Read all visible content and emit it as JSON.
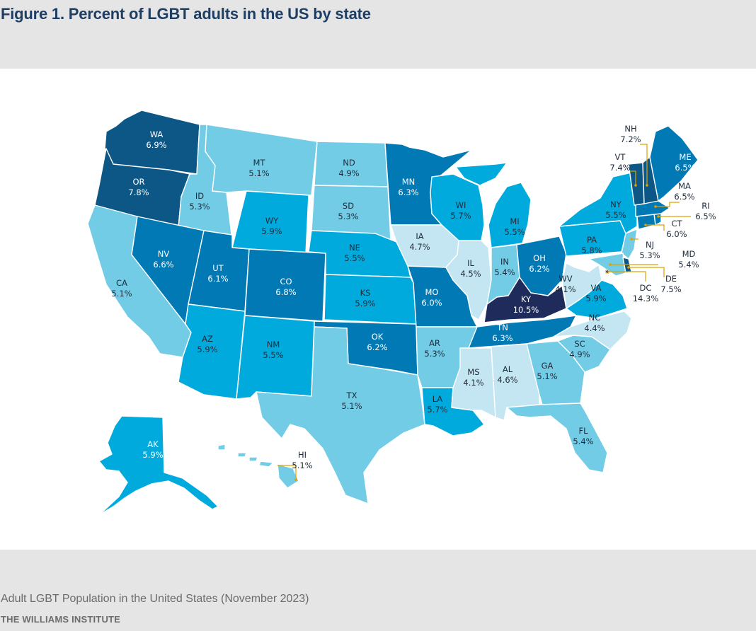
{
  "title": "Figure 1. Percent of LGBT adults in the US by state",
  "source": "Adult LGBT Population in the United States (November 2023)",
  "organization": "THE WILLIAMS INSTITUTE",
  "colors": {
    "shade_1": "#c4e5f2",
    "shade_2": "#73cce6",
    "shade_3": "#00aadd",
    "shade_4": "#0079b5",
    "shade_5": "#0d5787",
    "shade_6": "#1f2b5a",
    "leader": "#e0a100",
    "title": "#1f3e63"
  },
  "states": {
    "WA": {
      "abbr": "WA",
      "value": "6.9%"
    },
    "OR": {
      "abbr": "OR",
      "value": "7.8%"
    },
    "CA": {
      "abbr": "CA",
      "value": "5.1%"
    },
    "ID": {
      "abbr": "ID",
      "value": "5.3%"
    },
    "NV": {
      "abbr": "NV",
      "value": "6.6%"
    },
    "MT": {
      "abbr": "MT",
      "value": "5.1%"
    },
    "WY": {
      "abbr": "WY",
      "value": "5.9%"
    },
    "UT": {
      "abbr": "UT",
      "value": "6.1%"
    },
    "AZ": {
      "abbr": "AZ",
      "value": "5.9%"
    },
    "CO": {
      "abbr": "CO",
      "value": "6.8%"
    },
    "NM": {
      "abbr": "NM",
      "value": "5.5%"
    },
    "ND": {
      "abbr": "ND",
      "value": "4.9%"
    },
    "SD": {
      "abbr": "SD",
      "value": "5.3%"
    },
    "NE": {
      "abbr": "NE",
      "value": "5.5%"
    },
    "KS": {
      "abbr": "KS",
      "value": "5.9%"
    },
    "OK": {
      "abbr": "OK",
      "value": "6.2%"
    },
    "TX": {
      "abbr": "TX",
      "value": "5.1%"
    },
    "MN": {
      "abbr": "MN",
      "value": "6.3%"
    },
    "IA": {
      "abbr": "IA",
      "value": "4.7%"
    },
    "MO": {
      "abbr": "MO",
      "value": "6.0%"
    },
    "AR": {
      "abbr": "AR",
      "value": "5.3%"
    },
    "LA": {
      "abbr": "LA",
      "value": "5.7%"
    },
    "WI": {
      "abbr": "WI",
      "value": "5.7%"
    },
    "IL": {
      "abbr": "IL",
      "value": "4.5%"
    },
    "MI": {
      "abbr": "MI",
      "value": "5.5%"
    },
    "IN": {
      "abbr": "IN",
      "value": "5.4%"
    },
    "OH": {
      "abbr": "OH",
      "value": "6.2%"
    },
    "KY": {
      "abbr": "KY",
      "value": "10.5%"
    },
    "TN": {
      "abbr": "TN",
      "value": "6.3%"
    },
    "MS": {
      "abbr": "MS",
      "value": "4.1%"
    },
    "AL": {
      "abbr": "AL",
      "value": "4.6%"
    },
    "GA": {
      "abbr": "GA",
      "value": "5.1%"
    },
    "FL": {
      "abbr": "FL",
      "value": "5.4%"
    },
    "SC": {
      "abbr": "SC",
      "value": "4.9%"
    },
    "NC": {
      "abbr": "NC",
      "value": "4.4%"
    },
    "VA": {
      "abbr": "VA",
      "value": "5.9%"
    },
    "WV": {
      "abbr": "WV",
      "value": "4.1%"
    },
    "PA": {
      "abbr": "PA",
      "value": "5.8%"
    },
    "NY": {
      "abbr": "NY",
      "value": "5.5%"
    },
    "NJ": {
      "abbr": "NJ",
      "value": "5.3%"
    },
    "MD": {
      "abbr": "MD",
      "value": "5.4%"
    },
    "DE": {
      "abbr": "DE",
      "value": "7.5%"
    },
    "DC": {
      "abbr": "DC",
      "value": "14.3%"
    },
    "CT": {
      "abbr": "CT",
      "value": "6.0%"
    },
    "RI": {
      "abbr": "RI",
      "value": "6.5%"
    },
    "MA": {
      "abbr": "MA",
      "value": "6.5%"
    },
    "VT": {
      "abbr": "VT",
      "value": "7.4%"
    },
    "NH": {
      "abbr": "NH",
      "value": "7.2%"
    },
    "ME": {
      "abbr": "ME",
      "value": "6.5%"
    },
    "AK": {
      "abbr": "AK",
      "value": "5.9%"
    },
    "HI": {
      "abbr": "HI",
      "value": "5.1%"
    }
  }
}
